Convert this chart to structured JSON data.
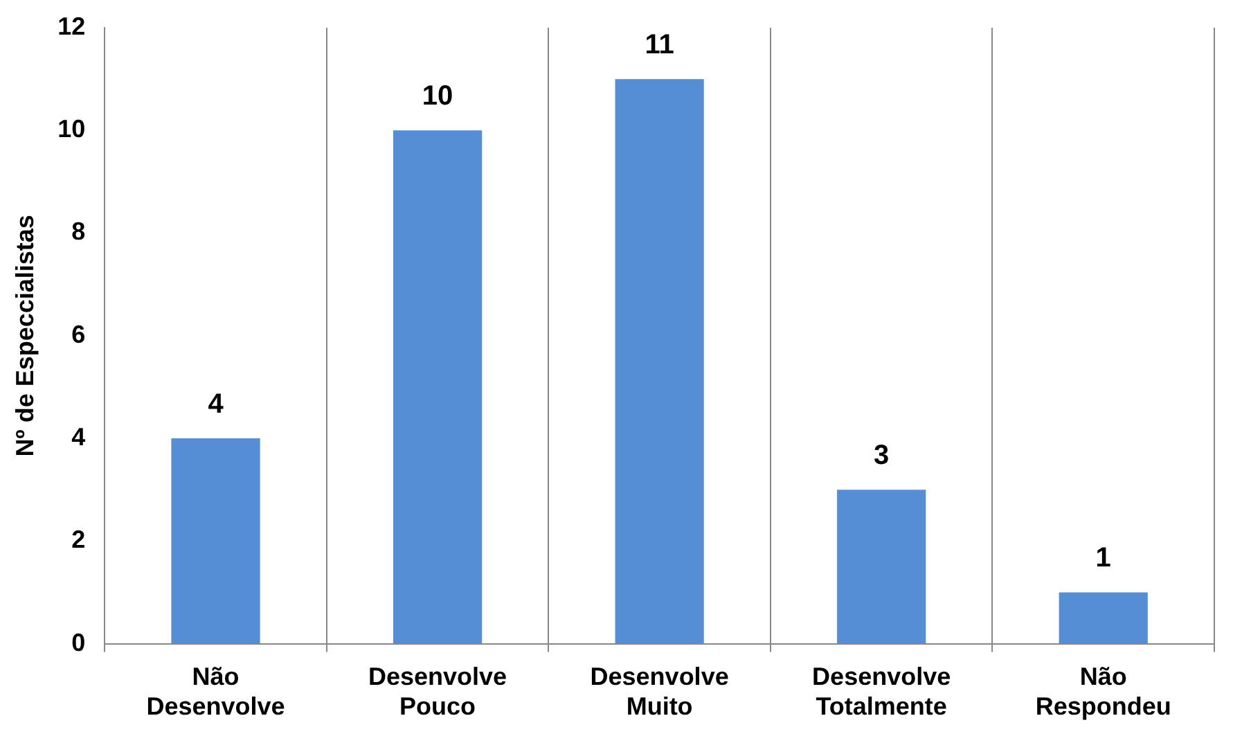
{
  "chart_data": {
    "type": "bar",
    "ylabel": "Nº de Especcialistas",
    "categories": [
      "Não Desenvolve",
      "Desenvolve Pouco",
      "Desenvolve Muito",
      "Desenvolve Totalmente",
      "Não Respondeu"
    ],
    "series": [
      {
        "color": "#558ed5",
        "values": [
          4,
          10,
          11,
          3,
          1
        ]
      }
    ],
    "ylim": [
      0,
      12
    ],
    "yticks": [
      0,
      2,
      4,
      6,
      8,
      10,
      12
    ],
    "grid": "x",
    "legend": false,
    "data_labels": true
  }
}
